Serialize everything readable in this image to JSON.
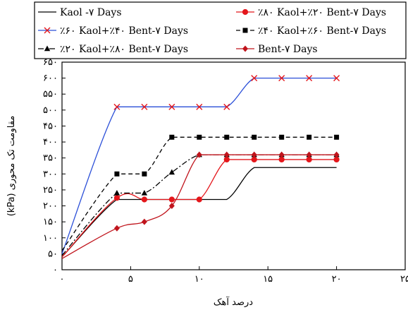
{
  "chart_data": {
    "type": "line",
    "xlabel": "درصد آهک",
    "ylabel": "مقاومت تک محوری (kPa)",
    "xlim": [
      0,
      25
    ],
    "ylim": [
      0,
      650
    ],
    "x_ticks": [
      0,
      5,
      10,
      15,
      20,
      25
    ],
    "y_ticks": [
      0,
      50,
      100,
      150,
      200,
      250,
      300,
      350,
      400,
      450,
      500,
      550,
      600,
      650
    ],
    "x_tick_labels": [
      "۰",
      "۵",
      "۱۰",
      "۱۵",
      "۲۰",
      "۲۵"
    ],
    "y_tick_labels": [
      "۰",
      "۵۰",
      "۱۰۰",
      "۱۵۰",
      "۲۰۰",
      "۲۵۰",
      "۳۰۰",
      "۳۵۰",
      "۴۰۰",
      "۴۵۰",
      "۵۰۰",
      "۵۵۰",
      "۶۰۰",
      "۶۵۰"
    ],
    "grid": false,
    "legend_position": "top",
    "series": [
      {
        "name": "Kaol -۷ Days",
        "color": "#000000",
        "dash": "solid",
        "marker": "none",
        "x": [
          0,
          4,
          6,
          8,
          10,
          12,
          14,
          16,
          18,
          20
        ],
        "y": [
          40,
          220,
          220,
          220,
          220,
          220,
          320,
          320,
          320,
          320
        ]
      },
      {
        "name": "٪۸۰ Kaol+٪۲۰ Bent-۷ Days",
        "color": "#e4161b",
        "dash": "solid",
        "marker": "circle",
        "x": [
          0,
          4,
          6,
          8,
          10,
          12,
          14,
          16,
          18,
          20
        ],
        "y": [
          40,
          225,
          220,
          220,
          220,
          345,
          345,
          345,
          345,
          345
        ]
      },
      {
        "name": "٪۶۰ Kaol+٪۴۰ Bent-۷ Days",
        "color": "#2b4fd8",
        "dash": "solid",
        "marker": "x",
        "x": [
          0,
          4,
          6,
          8,
          10,
          12,
          14,
          16,
          18,
          20
        ],
        "y": [
          50,
          510,
          510,
          510,
          510,
          510,
          600,
          600,
          600,
          600
        ]
      },
      {
        "name": "٪۴۰ Kaol+٪۶۰ Bent-۷ Days",
        "color": "#000000",
        "dash": "dash",
        "marker": "square",
        "x": [
          0,
          4,
          6,
          8,
          10,
          12,
          14,
          16,
          18,
          20
        ],
        "y": [
          60,
          300,
          300,
          415,
          415,
          415,
          415,
          415,
          415,
          415
        ]
      },
      {
        "name": "٪۲۰ Kaol+٪۸۰ Bent-۷ Days",
        "color": "#000000",
        "dash": "dashdot",
        "marker": "triangle",
        "x": [
          0,
          4,
          6,
          8,
          10,
          12,
          14,
          16,
          18,
          20
        ],
        "y": [
          45,
          240,
          240,
          305,
          360,
          360,
          360,
          360,
          360,
          360
        ]
      },
      {
        "name": "Bent-۷ Days",
        "color": "#c0141c",
        "dash": "solid",
        "marker": "diamond",
        "x": [
          0,
          4,
          6,
          8,
          10,
          12,
          14,
          16,
          18,
          20
        ],
        "y": [
          35,
          130,
          150,
          200,
          360,
          360,
          360,
          360,
          360,
          360
        ]
      }
    ]
  }
}
